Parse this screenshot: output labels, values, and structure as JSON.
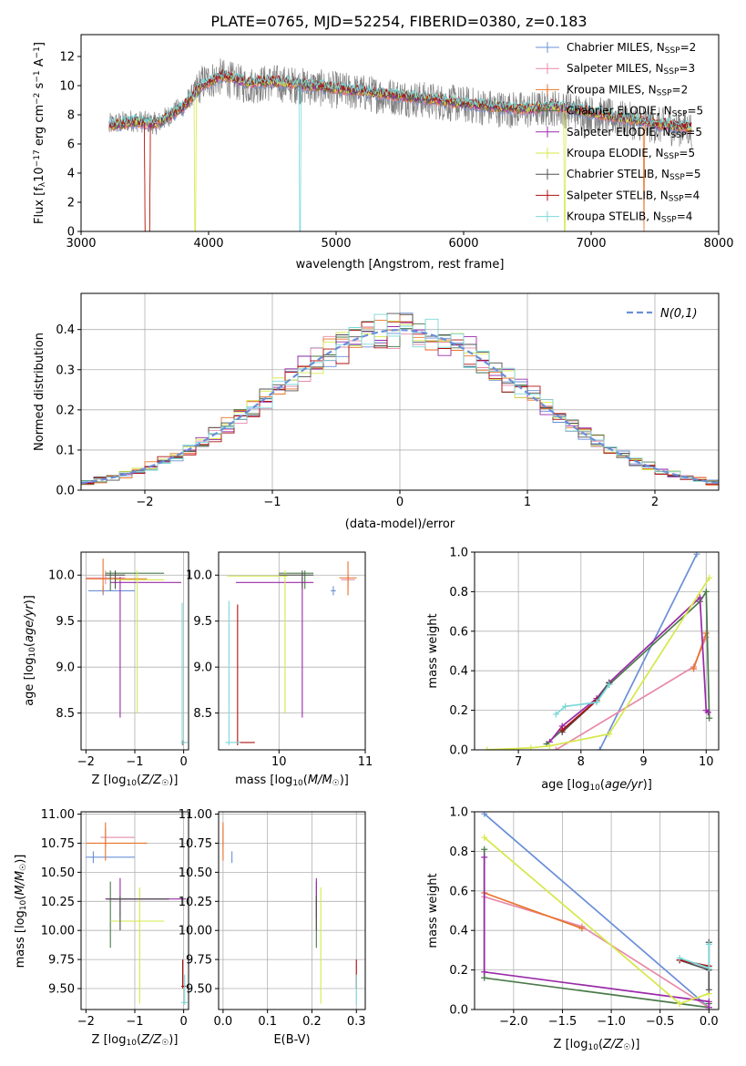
{
  "title": "PLATE=0765, MJD=52254, FIBERID=0380, z=0.183",
  "colors": {
    "Chabrier MILES": "#6a8fd8",
    "Salpeter MILES": "#e68aa8",
    "Kroupa MILES": "#e8732a",
    "Chabrier ELODIE": "#4a7a4a",
    "Salpeter ELODIE": "#9a2aa8",
    "Kroupa ELODIE": "#d6e84a",
    "Chabrier STELIB": "#505050",
    "Salpeter STELIB": "#b01010",
    "Kroupa STELIB": "#7ad8d8"
  },
  "chart_data": [
    {
      "id": "spectrum",
      "type": "line",
      "xlabel": "wavelength [Angstrom, rest frame]",
      "ylabel": "Flux [f_λ 10^-17 erg cm^-2 s^-1 A^-1]",
      "xlim": [
        3000,
        8000
      ],
      "ylim": [
        0,
        13.5
      ],
      "xticks": [
        3000,
        4000,
        5000,
        6000,
        7000,
        8000
      ],
      "yticks": [
        0,
        2,
        4,
        6,
        8,
        10,
        12
      ],
      "grid": false,
      "legend_position": "top-right",
      "legend": [
        {
          "model": "Chabrier MILES",
          "n": "2"
        },
        {
          "model": "Salpeter MILES",
          "n": "3"
        },
        {
          "model": "Kroupa MILES",
          "n": "2"
        },
        {
          "model": "Chabrier ELODIE",
          "n": "5"
        },
        {
          "model": "Salpeter ELODIE",
          "n": "5"
        },
        {
          "model": "Kroupa ELODIE",
          "n": "5"
        },
        {
          "model": "Chabrier STELIB",
          "n": "5"
        },
        {
          "model": "Salpeter STELIB",
          "n": "4"
        },
        {
          "model": "Kroupa STELIB",
          "n": "4"
        }
      ],
      "data_continuum": [
        [
          3200,
          7.3
        ],
        [
          3400,
          7.6
        ],
        [
          3600,
          7.4
        ],
        [
          3800,
          8.6
        ],
        [
          3950,
          10.2
        ],
        [
          4100,
          10.6
        ],
        [
          4300,
          10.0
        ],
        [
          4500,
          10.2
        ],
        [
          4700,
          10.0
        ],
        [
          4900,
          9.8
        ],
        [
          5100,
          9.6
        ],
        [
          5300,
          9.4
        ],
        [
          5500,
          9.2
        ],
        [
          5700,
          9.0
        ],
        [
          5900,
          8.8
        ],
        [
          6100,
          8.6
        ],
        [
          6300,
          8.4
        ],
        [
          6500,
          8.3
        ],
        [
          6700,
          8.5
        ],
        [
          6900,
          8.2
        ],
        [
          7100,
          7.9
        ],
        [
          7300,
          7.6
        ],
        [
          7500,
          7.3
        ],
        [
          7700,
          7.1
        ],
        [
          7800,
          7.0
        ]
      ],
      "model_continuum": [
        [
          3200,
          7.2
        ],
        [
          3400,
          7.5
        ],
        [
          3600,
          7.4
        ],
        [
          3800,
          8.5
        ],
        [
          3950,
          10.0
        ],
        [
          4100,
          10.7
        ],
        [
          4300,
          10.2
        ],
        [
          4500,
          10.3
        ],
        [
          4700,
          10.1
        ],
        [
          4900,
          9.9
        ],
        [
          5100,
          9.7
        ],
        [
          5300,
          9.5
        ],
        [
          5500,
          9.3
        ],
        [
          5700,
          9.1
        ],
        [
          5900,
          8.9
        ],
        [
          6100,
          8.7
        ],
        [
          6300,
          8.5
        ],
        [
          6500,
          8.4
        ],
        [
          6700,
          8.6
        ],
        [
          6900,
          8.3
        ],
        [
          7100,
          8.0
        ],
        [
          7300,
          7.7
        ],
        [
          7500,
          7.4
        ],
        [
          7700,
          7.2
        ],
        [
          7800,
          7.1
        ]
      ]
    },
    {
      "id": "residuals",
      "type": "histogram",
      "xlabel": "(data-model)/error",
      "ylabel": "Normed distribution",
      "xlim": [
        -2.5,
        2.5
      ],
      "ylim": [
        0,
        0.49
      ],
      "xticks": [
        -2,
        -1,
        0,
        1,
        2
      ],
      "yticks": [
        0.0,
        0.1,
        0.2,
        0.3,
        0.4
      ],
      "grid": true,
      "legend_position": "top-right",
      "legend_label": "N(0,1)",
      "bin_width": 0.1,
      "bin_start": -2.5
    },
    {
      "id": "age_vs_Z",
      "type": "errorbar",
      "xlabel": "Z [log10(Z/Z☉)]",
      "ylabel": "age [log10(age/yr)]",
      "xlim": [
        -2.1,
        0.1
      ],
      "ylim": [
        8.1,
        10.25
      ],
      "xticks": [
        -2,
        -1,
        0
      ],
      "yticks": [
        8.5,
        9.0,
        9.5,
        10.0
      ],
      "grid": true,
      "points": [
        {
          "model": "Chabrier MILES",
          "x": -1.65,
          "xlo": -1.95,
          "xhi": -1.0,
          "y": 9.83,
          "ylo": 9.78,
          "yhi": 9.88
        },
        {
          "model": "Salpeter MILES",
          "x": -1.6,
          "xlo": -2.0,
          "xhi": -1.2,
          "y": 9.97,
          "ylo": 9.9,
          "yhi": 10.05
        },
        {
          "model": "Kroupa MILES",
          "x": -1.65,
          "xlo": -2.0,
          "xhi": -0.75,
          "y": 9.96,
          "ylo": 9.8,
          "yhi": 10.18
        },
        {
          "model": "Chabrier ELODIE",
          "x": -1.5,
          "xlo": -1.6,
          "xhi": -0.4,
          "y": 10.02,
          "ylo": 9.83,
          "yhi": 10.05
        },
        {
          "model": "Salpeter ELODIE",
          "x": -1.3,
          "xlo": -1.5,
          "xhi": -0.05,
          "y": 9.92,
          "ylo": 8.45,
          "yhi": 9.98
        },
        {
          "model": "Kroupa ELODIE",
          "x": -0.95,
          "xlo": -1.4,
          "xhi": -0.4,
          "y": 9.95,
          "ylo": 8.5,
          "yhi": 10.05
        },
        {
          "model": "Chabrier STELIB",
          "x": -1.4,
          "xlo": -1.6,
          "xhi": -1.2,
          "y": 10.0,
          "ylo": 9.85,
          "yhi": 10.05
        },
        {
          "model": "Salpeter STELIB",
          "x": -0.02,
          "xlo": -0.05,
          "xhi": 0.02,
          "y": 8.18,
          "ylo": 8.15,
          "yhi": 8.2
        },
        {
          "model": "Kroupa STELIB",
          "x": -0.03,
          "xlo": -0.06,
          "xhi": 0.08,
          "y": 8.18,
          "ylo": 8.15,
          "yhi": 9.7
        }
      ]
    },
    {
      "id": "age_vs_mass",
      "type": "errorbar",
      "xlabel": "mass [log10(M/M☉)]",
      "ylabel": "",
      "xlim": [
        9.3,
        11.0
      ],
      "ylim": [
        8.1,
        10.25
      ],
      "xticks": [
        9,
        10,
        11
      ],
      "yticks": [
        8.5,
        9.0,
        9.5,
        10.0
      ],
      "grid": true,
      "points": [
        {
          "model": "Chabrier MILES",
          "x": 10.63,
          "xlo": 10.6,
          "xhi": 10.66,
          "y": 9.83,
          "ylo": 9.78,
          "yhi": 9.88
        },
        {
          "model": "Salpeter MILES",
          "x": 10.8,
          "xlo": 10.72,
          "xhi": 10.88,
          "y": 9.95,
          "ylo": 9.88,
          "yhi": 10.02
        },
        {
          "model": "Kroupa MILES",
          "x": 10.8,
          "xlo": 10.7,
          "xhi": 10.9,
          "y": 9.97,
          "ylo": 9.78,
          "yhi": 10.15
        },
        {
          "model": "Chabrier ELODIE",
          "x": 10.3,
          "xlo": 10.0,
          "xhi": 10.4,
          "y": 10.02,
          "ylo": 9.85,
          "yhi": 10.05
        },
        {
          "model": "Salpeter ELODIE",
          "x": 10.27,
          "xlo": 9.5,
          "xhi": 10.4,
          "y": 9.92,
          "ylo": 8.45,
          "yhi": 9.98
        },
        {
          "model": "Kroupa ELODIE",
          "x": 10.07,
          "xlo": 9.4,
          "xhi": 10.1,
          "y": 9.99,
          "ylo": 8.5,
          "yhi": 10.05
        },
        {
          "model": "Chabrier STELIB",
          "x": 10.27,
          "xlo": 10.0,
          "xhi": 10.4,
          "y": 10.0,
          "ylo": 9.85,
          "yhi": 10.05
        },
        {
          "model": "Salpeter STELIB",
          "x": 9.52,
          "xlo": 9.5,
          "xhi": 9.72,
          "y": 8.18,
          "ylo": 8.15,
          "yhi": 9.68
        },
        {
          "model": "Kroupa STELIB",
          "x": 9.42,
          "xlo": 9.38,
          "xhi": 9.55,
          "y": 8.18,
          "ylo": 8.15,
          "yhi": 9.72
        }
      ]
    },
    {
      "id": "weight_vs_age",
      "type": "line",
      "xlabel": "age [log10(age/yr)]",
      "ylabel": "mass weight",
      "xlim": [
        6.3,
        10.2
      ],
      "ylim": [
        0,
        1.0
      ],
      "xticks": [
        7,
        8,
        9,
        10
      ],
      "yticks": [
        0.0,
        0.2,
        0.4,
        0.6,
        0.8,
        1.0
      ],
      "grid": true,
      "series": [
        {
          "model": "Chabrier MILES",
          "x": [
            8.3,
            9.85
          ],
          "y": [
            0.0,
            0.99
          ]
        },
        {
          "model": "Salpeter MILES",
          "x": [
            7.6,
            9.8,
            10.0
          ],
          "y": [
            0.0,
            0.42,
            0.57
          ]
        },
        {
          "model": "Kroupa MILES",
          "x": [
            9.8,
            10.0
          ],
          "y": [
            0.41,
            0.59
          ]
        },
        {
          "model": "Chabrier ELODIE",
          "x": [
            7.45,
            7.7,
            8.25,
            8.45,
            9.9,
            10.0,
            10.05
          ],
          "y": [
            0.03,
            0.1,
            0.25,
            0.33,
            0.75,
            0.8,
            0.16
          ]
        },
        {
          "model": "Salpeter ELODIE",
          "x": [
            7.5,
            7.7,
            8.25,
            8.45,
            9.9,
            10.0,
            10.03
          ],
          "y": [
            0.04,
            0.12,
            0.26,
            0.34,
            0.77,
            0.2,
            0.19
          ]
        },
        {
          "model": "Kroupa ELODIE",
          "x": [
            6.5,
            7.2,
            7.5,
            8.45,
            10.05
          ],
          "y": [
            0.0,
            0.01,
            0.02,
            0.08,
            0.87
          ]
        },
        {
          "model": "Chabrier STELIB",
          "x": [
            7.7,
            8.25,
            8.45
          ],
          "y": [
            0.09,
            0.25,
            0.34
          ]
        },
        {
          "model": "Salpeter STELIB",
          "x": [
            7.7,
            8.25
          ],
          "y": [
            0.1,
            0.25
          ]
        },
        {
          "model": "Kroupa STELIB",
          "x": [
            7.6,
            7.75,
            8.25,
            8.45
          ],
          "y": [
            0.18,
            0.22,
            0.24,
            0.33
          ]
        }
      ]
    },
    {
      "id": "mass_vs_Z",
      "type": "errorbar",
      "xlabel": "Z [log10(Z/Z☉)]",
      "ylabel": "mass [log10(M/M☉)]",
      "xlim": [
        -2.1,
        0.1
      ],
      "ylim": [
        9.32,
        11.02
      ],
      "xticks": [
        -2,
        -1,
        0
      ],
      "yticks": [
        9.5,
        9.75,
        10.0,
        10.25,
        10.5,
        10.75,
        11.0
      ],
      "grid": true,
      "points": [
        {
          "model": "Chabrier MILES",
          "x": -1.85,
          "xlo": -2.0,
          "xhi": -1.0,
          "y": 10.63,
          "ylo": 10.58,
          "yhi": 10.68
        },
        {
          "model": "Salpeter MILES",
          "x": -1.6,
          "xlo": -1.7,
          "xhi": -1.0,
          "y": 10.8,
          "ylo": 10.72,
          "yhi": 10.88
        },
        {
          "model": "Kroupa MILES",
          "x": -1.6,
          "xlo": -2.0,
          "xhi": -0.75,
          "y": 10.75,
          "ylo": 10.6,
          "yhi": 10.93
        },
        {
          "model": "Chabrier ELODIE",
          "x": -1.5,
          "xlo": -1.6,
          "xhi": -0.3,
          "y": 10.27,
          "ylo": 9.85,
          "yhi": 10.42
        },
        {
          "model": "Salpeter ELODIE",
          "x": -1.3,
          "xlo": -1.6,
          "xhi": 0.05,
          "y": 10.27,
          "ylo": 10.1,
          "yhi": 10.45
        },
        {
          "model": "Kroupa ELODIE",
          "x": -0.9,
          "xlo": -1.5,
          "xhi": -0.4,
          "y": 10.08,
          "ylo": 9.37,
          "yhi": 10.37
        },
        {
          "model": "Chabrier STELIB",
          "x": -1.3,
          "xlo": -1.55,
          "xhi": -0.3,
          "y": 10.27,
          "ylo": 10.0,
          "yhi": 10.3
        },
        {
          "model": "Salpeter STELIB",
          "x": -0.02,
          "xlo": -0.05,
          "xhi": 0.05,
          "y": 9.52,
          "ylo": 9.5,
          "yhi": 9.75
        },
        {
          "model": "Kroupa STELIB",
          "x": 0.02,
          "xlo": -0.05,
          "xhi": 0.08,
          "y": 9.38,
          "ylo": 9.36,
          "yhi": 9.62
        }
      ]
    },
    {
      "id": "mass_vs_ebv",
      "type": "errorbar",
      "xlabel": "E(B-V)",
      "ylabel": "",
      "xlim": [
        -0.01,
        0.32
      ],
      "ylim": [
        9.32,
        11.02
      ],
      "xticks": [
        0.0,
        0.1,
        0.2,
        0.3
      ],
      "yticks": [
        9.5,
        9.75,
        10.0,
        10.25,
        10.5,
        10.75,
        11.0
      ],
      "grid": true,
      "points": [
        {
          "model": "Chabrier MILES",
          "x": 0.02,
          "xlo": 0.02,
          "xhi": 0.02,
          "y": 10.63,
          "ylo": 10.58,
          "yhi": 10.68
        },
        {
          "model": "Salpeter MILES",
          "x": 0.0,
          "xlo": 0.0,
          "xhi": 0.0,
          "y": 10.8,
          "ylo": 10.72,
          "yhi": 10.88
        },
        {
          "model": "Kroupa MILES",
          "x": 0.0,
          "xlo": 0.0,
          "xhi": 0.0,
          "y": 10.75,
          "ylo": 10.6,
          "yhi": 10.93
        },
        {
          "model": "Chabrier ELODIE",
          "x": 0.21,
          "xlo": 0.21,
          "xhi": 0.21,
          "y": 10.27,
          "ylo": 9.85,
          "yhi": 10.42
        },
        {
          "model": "Salpeter ELODIE",
          "x": 0.21,
          "xlo": 0.21,
          "xhi": 0.21,
          "y": 10.27,
          "ylo": 10.1,
          "yhi": 10.45
        },
        {
          "model": "Kroupa ELODIE",
          "x": 0.22,
          "xlo": 0.22,
          "xhi": 0.22,
          "y": 10.08,
          "ylo": 9.37,
          "yhi": 10.37
        },
        {
          "model": "Chabrier STELIB",
          "x": 0.21,
          "xlo": 0.21,
          "xhi": 0.21,
          "y": 10.27,
          "ylo": 10.0,
          "yhi": 10.3
        },
        {
          "model": "Salpeter STELIB",
          "x": 0.3,
          "xlo": 0.3,
          "xhi": 0.3,
          "y": 9.52,
          "ylo": 9.5,
          "yhi": 9.75
        },
        {
          "model": "Kroupa STELIB",
          "x": 0.3,
          "xlo": 0.3,
          "xhi": 0.3,
          "y": 9.38,
          "ylo": 9.36,
          "yhi": 9.62
        }
      ]
    },
    {
      "id": "weight_vs_Z",
      "type": "line",
      "xlabel": "Z [log10(Z/Z☉)]",
      "ylabel": "mass weight",
      "xlim": [
        -2.4,
        0.1
      ],
      "ylim": [
        0,
        1.0
      ],
      "xticks": [
        -2.0,
        -1.5,
        -1.0,
        -0.5,
        0.0
      ],
      "yticks": [
        0.0,
        0.2,
        0.4,
        0.6,
        0.8,
        1.0
      ],
      "grid": true,
      "series": [
        {
          "model": "Chabrier MILES",
          "x": [
            -2.3,
            0.0
          ],
          "y": [
            0.99,
            0.01
          ]
        },
        {
          "model": "Salpeter MILES",
          "x": [
            -2.3,
            -1.3,
            0.0
          ],
          "y": [
            0.57,
            0.42,
            0.01
          ]
        },
        {
          "model": "Kroupa MILES",
          "x": [
            -2.3,
            -1.3
          ],
          "y": [
            0.59,
            0.41
          ]
        },
        {
          "model": "Chabrier ELODIE",
          "x": [
            -2.3,
            -2.3,
            0.0,
            0.0
          ],
          "y": [
            0.81,
            0.16,
            0.01,
            0.03
          ]
        },
        {
          "model": "Salpeter ELODIE",
          "x": [
            -2.3,
            -2.3,
            0.0,
            0.0
          ],
          "y": [
            0.77,
            0.19,
            0.04,
            0.01
          ]
        },
        {
          "model": "Kroupa ELODIE",
          "x": [
            -2.3,
            -0.3,
            0.0
          ],
          "y": [
            0.87,
            0.03,
            0.08
          ]
        },
        {
          "model": "Chabrier STELIB",
          "x": [
            -0.3,
            0.0,
            0.0,
            0.0
          ],
          "y": [
            0.25,
            0.2,
            0.1,
            0.34
          ]
        },
        {
          "model": "Salpeter STELIB",
          "x": [
            -0.3,
            0.0
          ],
          "y": [
            0.25,
            0.22
          ]
        },
        {
          "model": "Kroupa STELIB",
          "x": [
            -0.3,
            0.0,
            0.0
          ],
          "y": [
            0.26,
            0.21,
            0.33
          ]
        }
      ]
    }
  ]
}
